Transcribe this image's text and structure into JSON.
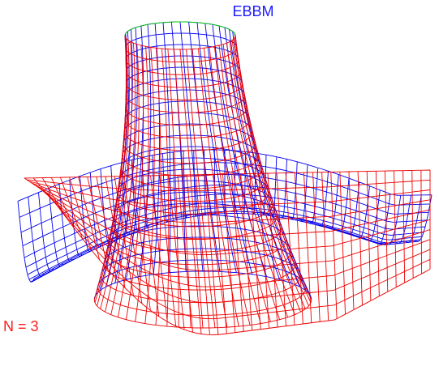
{
  "title": "EBBM",
  "label": "N = 3"
}
